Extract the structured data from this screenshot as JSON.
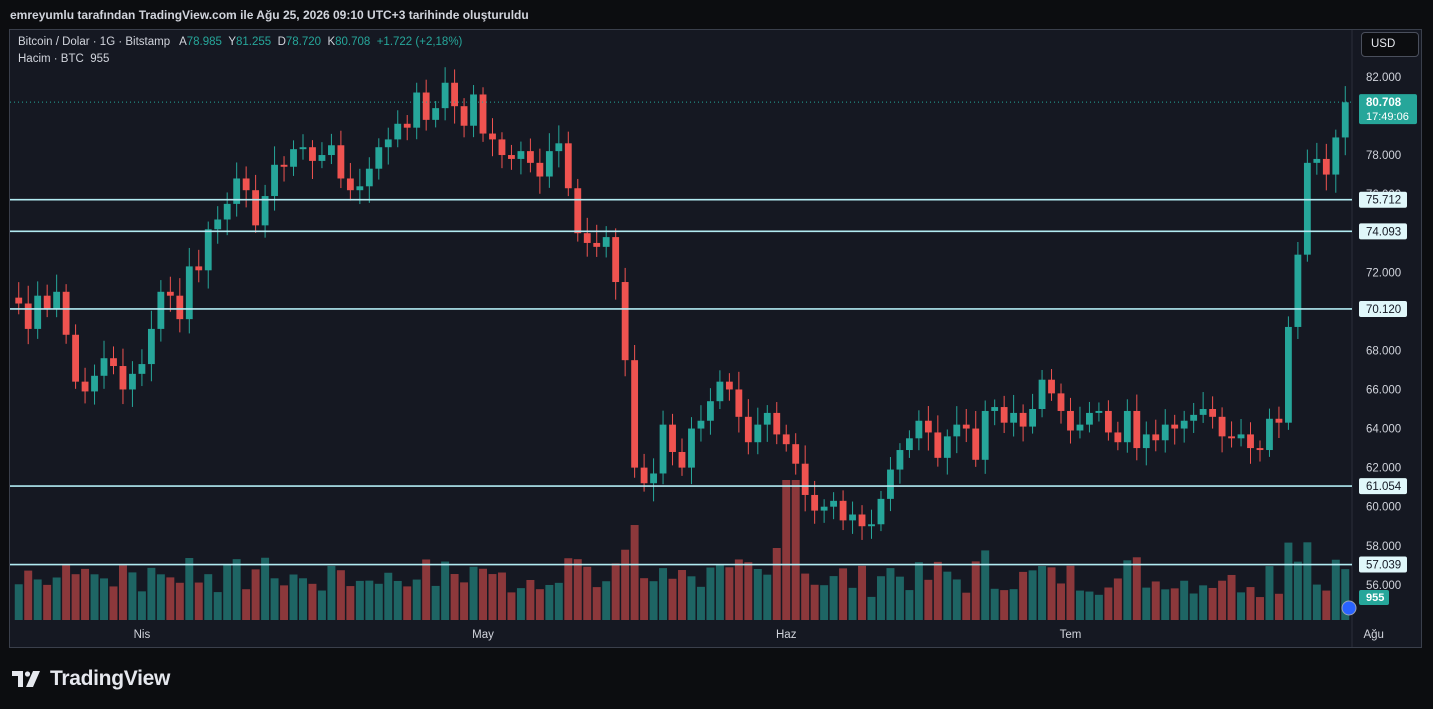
{
  "caption": "emreyumlu tarafından TradingView.com ile Ağu 25, 2026 09:10 UTC+3 tarihinde oluşturuldu",
  "legend": {
    "symbol": "Bitcoin / Dolar · 1G · Bitstamp",
    "open_label": "A",
    "open": "78.985",
    "high_label": "Y",
    "high": "81.255",
    "low_label": "D",
    "low": "78.720",
    "close_label": "K",
    "close": "80.708",
    "change": "+1.722 (+2,18%)",
    "volume_label": "Hacim · BTC",
    "volume_value": "955"
  },
  "currency": "USD",
  "brand": "TradingView",
  "colors": {
    "up": "#26a69a",
    "down": "#ef5350",
    "level_line": "#b2ebf2",
    "background": "#151822"
  },
  "chart_data": {
    "type": "candlestick",
    "title": "Bitcoin / Dolar · 1G · Bitstamp",
    "ylim": [
      54200,
      84400
    ],
    "y_ticks": [
      "82.000",
      "80.000",
      "78.000",
      "76.000",
      "74.000",
      "72.000",
      "70.000",
      "68.000",
      "66.000",
      "64.000",
      "62.000",
      "60.000",
      "58.000",
      "56.000"
    ],
    "x_labels": [
      {
        "label": "Nis",
        "index": 13
      },
      {
        "label": "May",
        "index": 49
      },
      {
        "label": "Haz",
        "index": 81
      },
      {
        "label": "Tem",
        "index": 111
      },
      {
        "label": "Ağu",
        "index": 143
      }
    ],
    "last_price": {
      "value": 80.708,
      "label": "80.708",
      "countdown": "17:49:06"
    },
    "volume_last_label": "955",
    "horizontal_levels": [
      {
        "value": 75.712,
        "label": "75.712"
      },
      {
        "value": 74.093,
        "label": "74.093"
      },
      {
        "value": 70.12,
        "label": "70.120"
      },
      {
        "value": 61.054,
        "label": "61.054"
      },
      {
        "value": 57.039,
        "label": "57.039"
      }
    ],
    "closes": [
      70.4,
      69.1,
      70.8,
      70.1,
      71.0,
      68.8,
      66.4,
      65.9,
      66.7,
      67.6,
      67.2,
      66.0,
      66.8,
      67.3,
      69.1,
      71.0,
      70.8,
      69.6,
      72.3,
      72.1,
      74.2,
      74.7,
      75.5,
      76.8,
      76.2,
      74.4,
      75.9,
      77.5,
      77.4,
      78.3,
      78.4,
      77.7,
      78.0,
      78.5,
      76.8,
      76.2,
      76.4,
      77.3,
      78.4,
      78.8,
      79.6,
      79.4,
      81.2,
      79.8,
      80.4,
      81.7,
      80.5,
      79.5,
      81.1,
      79.1,
      78.8,
      78.0,
      77.8,
      78.2,
      77.6,
      76.9,
      78.2,
      78.6,
      76.3,
      74.0,
      73.5,
      73.3,
      73.8,
      71.5,
      67.5,
      62.0,
      61.2,
      61.7,
      64.2,
      62.8,
      62.0,
      64.0,
      64.4,
      65.4,
      66.4,
      66.0,
      64.6,
      63.3,
      64.2,
      64.8,
      63.7,
      63.2,
      62.2,
      60.6,
      59.8,
      60.0,
      60.3,
      59.3,
      59.6,
      59.0,
      59.1,
      60.4,
      61.9,
      62.9,
      63.5,
      64.4,
      63.8,
      62.5,
      63.6,
      64.2,
      64.0,
      62.4,
      64.9,
      65.1,
      64.3,
      64.8,
      64.1,
      65.0,
      66.5,
      65.8,
      64.9,
      63.9,
      64.2,
      64.8,
      64.9,
      63.8,
      63.3,
      64.9,
      63.0,
      63.7,
      63.4,
      64.2,
      64.0,
      64.4,
      64.7,
      65.0,
      64.6,
      63.6,
      63.5,
      63.7,
      63.0,
      62.9,
      64.5,
      64.3,
      69.2,
      72.9,
      77.6,
      77.8,
      77.0,
      78.9,
      80.7
    ],
    "ohlc_note": "K=close for last bar",
    "volume_closes_note": "",
    "volume_values": []
  }
}
